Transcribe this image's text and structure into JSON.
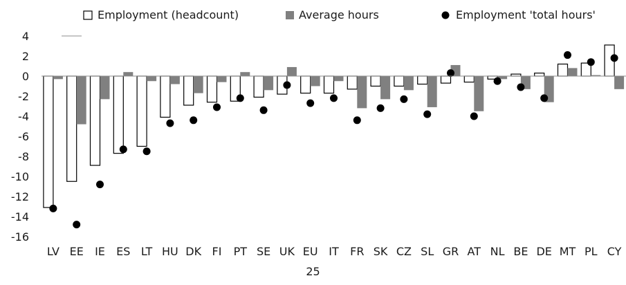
{
  "chart_data": {
    "type": "bar",
    "categories": [
      "LV",
      "EE",
      "IE",
      "ES",
      "LT",
      "HU",
      "DK",
      "FI",
      "PT",
      "SE",
      "UK",
      "EU",
      "IT",
      "FR",
      "SK",
      "CZ",
      "SL",
      "GR",
      "AT",
      "NL",
      "BE",
      "DE",
      "MT",
      "PL",
      "CY"
    ],
    "series": [
      {
        "name": "Employment (headcount)",
        "kind": "bar",
        "fill": "#ffffff",
        "stroke": "#000000",
        "values": [
          -13.1,
          -10.5,
          -8.9,
          -7.7,
          -7.0,
          -4.1,
          -2.9,
          -2.6,
          -2.5,
          -2.1,
          -1.8,
          -1.7,
          -1.7,
          -1.3,
          -1.0,
          -1.0,
          -0.8,
          -0.7,
          -0.6,
          -0.3,
          0.2,
          0.3,
          1.2,
          1.3,
          3.1
        ]
      },
      {
        "name": "Average hours",
        "kind": "bar",
        "fill": "#808080",
        "values": [
          -0.3,
          -4.8,
          -2.3,
          0.4,
          -0.5,
          -0.8,
          -1.7,
          -0.6,
          0.4,
          -1.4,
          0.9,
          -1.0,
          -0.5,
          -3.2,
          -2.3,
          -1.4,
          -3.1,
          1.1,
          -3.5,
          -0.3,
          -1.3,
          -2.6,
          0.8,
          0.1,
          -1.3
        ]
      },
      {
        "name": "Employment 'total hours'",
        "kind": "point",
        "fill": "#000000",
        "values": [
          -13.2,
          -14.8,
          -10.8,
          -7.3,
          -7.5,
          -4.7,
          -4.4,
          -3.1,
          -2.2,
          -3.4,
          -0.9,
          -2.7,
          -2.2,
          -4.4,
          -3.2,
          -2.3,
          -3.8,
          0.3,
          -4.0,
          -0.5,
          -1.1,
          -2.2,
          2.1,
          1.4,
          1.8
        ]
      }
    ],
    "ylim": [
      -16,
      4
    ],
    "yticks": [
      4,
      2,
      0,
      -2,
      -4,
      -6,
      -8,
      -10,
      -12,
      -14,
      -16
    ],
    "grid": false,
    "legend": "top"
  },
  "page_number": "25"
}
